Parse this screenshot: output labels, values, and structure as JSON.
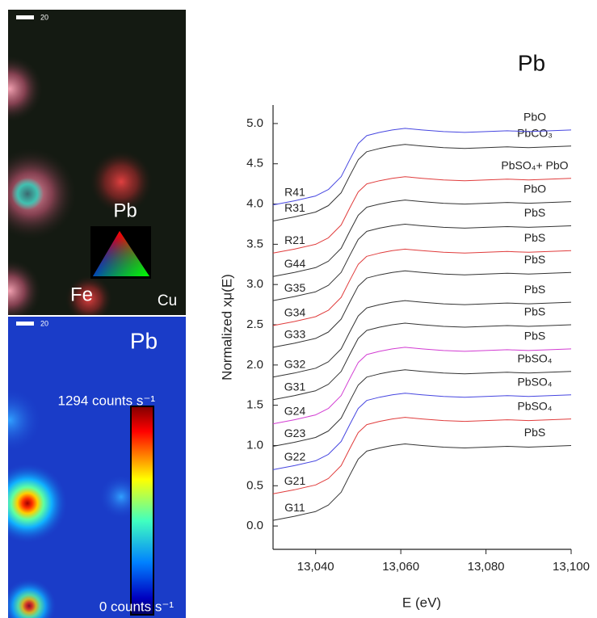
{
  "chart_data": {
    "type": "line",
    "title": "Pb",
    "x_label": "E (eV)",
    "y_label": "Normalized xμ(E)",
    "x": [
      13030,
      13035,
      13040,
      13043,
      13046,
      13048,
      13050,
      13052,
      13055,
      13058,
      13061,
      13065,
      13070,
      13075,
      13080,
      13085,
      13090,
      13095,
      13100
    ],
    "xlim": [
      13030,
      13100
    ],
    "xticks": [
      {
        "value": 13040,
        "label": "13,040"
      },
      {
        "value": 13060,
        "label": "13,060"
      },
      {
        "value": 13080,
        "label": "13,080"
      },
      {
        "value": 13100,
        "label": "13,100"
      }
    ],
    "ylim": [
      -0.29,
      5.23
    ],
    "yticks": [
      {
        "value": 0,
        "label": "0.0"
      },
      0.5,
      {
        "value": 1,
        "label": "1.0"
      },
      1.5,
      {
        "value": 2,
        "label": "2.0"
      },
      2.5,
      {
        "value": 3,
        "label": "3.0"
      },
      3.5,
      {
        "value": 4,
        "label": "4.0"
      },
      4.5,
      {
        "value": 5,
        "label": "5.0"
      }
    ],
    "grid": false,
    "series": [
      {
        "name": "G11",
        "label": "PbS",
        "color": "#333333",
        "values": [
          0.07,
          0.12,
          0.18,
          0.26,
          0.42,
          0.63,
          0.83,
          0.93,
          0.97,
          1.0,
          1.02,
          1.0,
          0.98,
          0.97,
          0.98,
          0.99,
          0.98,
          0.99,
          1.0
        ]
      },
      {
        "name": "G21",
        "label": "PbSO₄",
        "color": "#e03c3c",
        "values": [
          0.4,
          0.45,
          0.51,
          0.59,
          0.75,
          0.96,
          1.16,
          1.26,
          1.3,
          1.33,
          1.35,
          1.33,
          1.31,
          1.3,
          1.31,
          1.32,
          1.31,
          1.32,
          1.33
        ]
      },
      {
        "name": "G22",
        "label": "PbSO₄",
        "color": "#4646e0",
        "values": [
          0.7,
          0.75,
          0.81,
          0.89,
          1.05,
          1.26,
          1.46,
          1.56,
          1.6,
          1.63,
          1.65,
          1.63,
          1.61,
          1.6,
          1.61,
          1.62,
          1.61,
          1.62,
          1.63
        ]
      },
      {
        "name": "G23",
        "label": "PbSO₄",
        "color": "#333333",
        "values": [
          0.99,
          1.04,
          1.1,
          1.18,
          1.34,
          1.55,
          1.75,
          1.85,
          1.89,
          1.92,
          1.94,
          1.92,
          1.9,
          1.89,
          1.9,
          1.91,
          1.9,
          1.91,
          1.92
        ]
      },
      {
        "name": "G24",
        "label": "PbS",
        "color": "#d23cd2",
        "values": [
          1.27,
          1.32,
          1.38,
          1.46,
          1.62,
          1.83,
          2.03,
          2.13,
          2.17,
          2.2,
          2.22,
          2.2,
          2.18,
          2.17,
          2.18,
          2.19,
          2.18,
          2.19,
          2.2
        ]
      },
      {
        "name": "G31",
        "label": "PbS",
        "color": "#333333",
        "values": [
          1.57,
          1.62,
          1.68,
          1.76,
          1.92,
          2.13,
          2.33,
          2.43,
          2.47,
          2.5,
          2.52,
          2.5,
          2.48,
          2.47,
          2.48,
          2.49,
          2.48,
          2.49,
          2.5
        ]
      },
      {
        "name": "G32",
        "label": "PbS",
        "color": "#333333",
        "values": [
          1.85,
          1.9,
          1.96,
          2.04,
          2.2,
          2.41,
          2.61,
          2.71,
          2.75,
          2.78,
          2.8,
          2.78,
          2.76,
          2.75,
          2.76,
          2.77,
          2.76,
          2.77,
          2.78
        ]
      },
      {
        "name": "G33",
        "label": "PbS",
        "color": "#333333",
        "values": [
          2.22,
          2.27,
          2.33,
          2.41,
          2.57,
          2.78,
          2.98,
          3.08,
          3.12,
          3.15,
          3.17,
          3.15,
          3.13,
          3.12,
          3.13,
          3.14,
          3.13,
          3.14,
          3.15
        ]
      },
      {
        "name": "G34",
        "label": "PbS",
        "color": "#e03c3c",
        "values": [
          2.49,
          2.54,
          2.6,
          2.68,
          2.84,
          3.05,
          3.25,
          3.35,
          3.39,
          3.42,
          3.44,
          3.42,
          3.4,
          3.39,
          3.4,
          3.41,
          3.4,
          3.41,
          3.42
        ]
      },
      {
        "name": "G35",
        "label": "PbS",
        "color": "#333333",
        "values": [
          2.8,
          2.85,
          2.91,
          2.99,
          3.15,
          3.36,
          3.56,
          3.66,
          3.7,
          3.73,
          3.75,
          3.73,
          3.71,
          3.7,
          3.71,
          3.72,
          3.71,
          3.72,
          3.73
        ]
      },
      {
        "name": "G44",
        "label": "PbO",
        "color": "#333333",
        "values": [
          3.1,
          3.15,
          3.21,
          3.29,
          3.45,
          3.66,
          3.86,
          3.96,
          4.0,
          4.03,
          4.05,
          4.03,
          4.01,
          4.0,
          4.01,
          4.02,
          4.01,
          4.02,
          4.03
        ]
      },
      {
        "name": "R21",
        "label": "PbSO₄+ PbO",
        "color": "#e03c3c",
        "values": [
          3.39,
          3.44,
          3.5,
          3.58,
          3.74,
          3.95,
          4.15,
          4.25,
          4.29,
          4.32,
          4.34,
          4.32,
          4.3,
          4.29,
          4.3,
          4.31,
          4.3,
          4.31,
          4.32
        ]
      },
      {
        "name": "R31",
        "label": "PbCO₃",
        "color": "#333333",
        "values": [
          3.79,
          3.84,
          3.9,
          3.98,
          4.14,
          4.35,
          4.55,
          4.65,
          4.69,
          4.72,
          4.74,
          4.72,
          4.7,
          4.69,
          4.7,
          4.71,
          4.7,
          4.71,
          4.72
        ]
      },
      {
        "name": "R41",
        "label": "PbO",
        "color": "#4646e0",
        "values": [
          3.99,
          4.04,
          4.1,
          4.18,
          4.34,
          4.55,
          4.75,
          4.85,
          4.89,
          4.92,
          4.94,
          4.92,
          4.9,
          4.89,
          4.9,
          4.91,
          4.9,
          4.91,
          4.92
        ]
      }
    ]
  },
  "panels": {
    "map": {
      "scale": "20",
      "labels": [
        "Pb",
        "Fe",
        "Cu"
      ]
    },
    "heatmap": {
      "scale": "20",
      "title": "Pb",
      "max_label": "1294 counts s⁻¹",
      "min_label": "0 counts s⁻¹"
    }
  }
}
